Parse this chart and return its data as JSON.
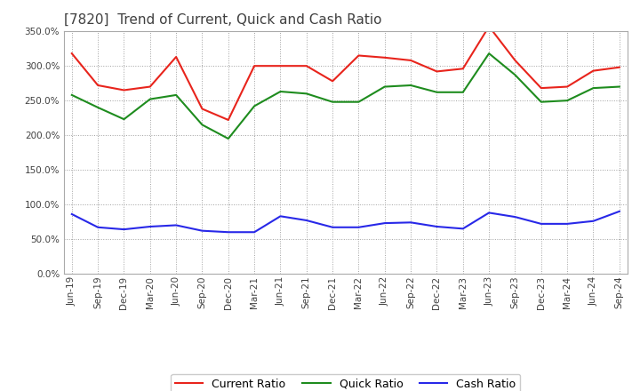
{
  "title": "[7820]  Trend of Current, Quick and Cash Ratio",
  "x_labels": [
    "Jun-19",
    "Sep-19",
    "Dec-19",
    "Mar-20",
    "Jun-20",
    "Sep-20",
    "Dec-20",
    "Mar-21",
    "Jun-21",
    "Sep-21",
    "Dec-21",
    "Mar-22",
    "Jun-22",
    "Sep-22",
    "Dec-22",
    "Mar-23",
    "Jun-23",
    "Sep-23",
    "Dec-23",
    "Mar-24",
    "Jun-24",
    "Sep-24"
  ],
  "current_ratio": [
    318,
    272,
    265,
    270,
    313,
    238,
    222,
    300,
    300,
    300,
    278,
    315,
    312,
    308,
    292,
    296,
    357,
    308,
    268,
    270,
    293,
    298
  ],
  "quick_ratio": [
    258,
    240,
    223,
    252,
    258,
    215,
    195,
    242,
    263,
    260,
    248,
    248,
    270,
    272,
    262,
    262,
    318,
    287,
    248,
    250,
    268,
    270
  ],
  "cash_ratio": [
    86,
    67,
    64,
    68,
    70,
    62,
    60,
    60,
    83,
    77,
    67,
    67,
    73,
    74,
    68,
    65,
    88,
    82,
    72,
    72,
    76,
    90
  ],
  "current_color": "#e8241c",
  "quick_color": "#1e8c1e",
  "cash_color": "#2828e8",
  "ylim": [
    0,
    350
  ],
  "yticks": [
    0,
    50,
    100,
    150,
    200,
    250,
    300,
    350
  ],
  "background_color": "#ffffff",
  "grid_color": "#a0a0a0",
  "title_color": "#404040",
  "legend_labels": [
    "Current Ratio",
    "Quick Ratio",
    "Cash Ratio"
  ]
}
